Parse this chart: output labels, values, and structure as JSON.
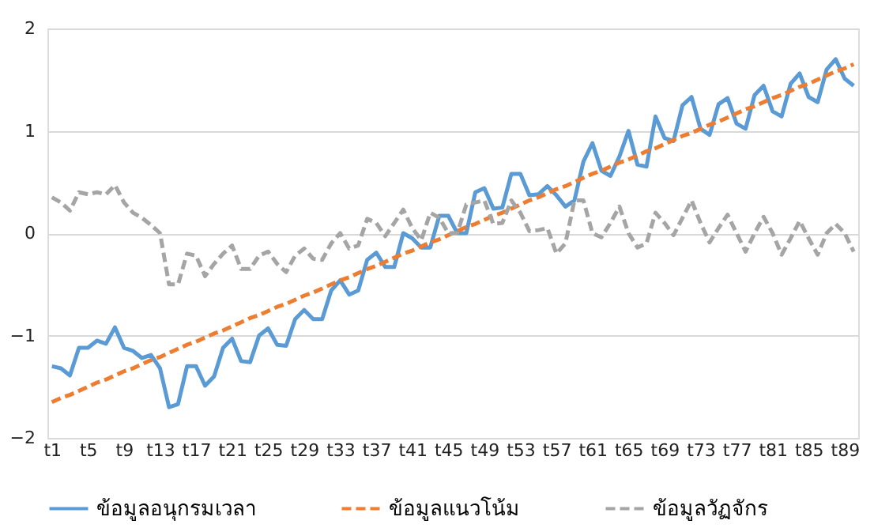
{
  "chart_data": {
    "type": "line",
    "categories": [
      "t1",
      null,
      null,
      null,
      "t5",
      null,
      null,
      null,
      "t9",
      null,
      null,
      null,
      "t13",
      null,
      null,
      null,
      "t17",
      null,
      null,
      null,
      "t21",
      null,
      null,
      null,
      "t25",
      null,
      null,
      null,
      "t29",
      null,
      null,
      null,
      "t33",
      null,
      null,
      null,
      "t37",
      null,
      null,
      null,
      "t41",
      null,
      null,
      null,
      "t45",
      null,
      null,
      null,
      "t49",
      null,
      null,
      null,
      "t53",
      null,
      null,
      null,
      "t57",
      null,
      null,
      null,
      "t61",
      null,
      null,
      null,
      "t65",
      null,
      null,
      null,
      "t69",
      null,
      null,
      null,
      "t73",
      null,
      null,
      null,
      "t77",
      null,
      null,
      null,
      "t81",
      null,
      null,
      null,
      "t85",
      null,
      null,
      null,
      "t89",
      null
    ],
    "series": [
      {
        "name": "ข้อมูลอนุกรมเวลา",
        "color": "#5b9bd5",
        "line_style": "solid",
        "values": [
          -1.3,
          -1.32,
          -1.39,
          -1.12,
          -1.12,
          -1.05,
          -1.08,
          -0.92,
          -1.12,
          -1.15,
          -1.22,
          -1.19,
          -1.32,
          -1.7,
          -1.67,
          -1.3,
          -1.3,
          -1.49,
          -1.4,
          -1.12,
          -1.03,
          -1.25,
          -1.26,
          -1.0,
          -0.93,
          -1.09,
          -1.1,
          -0.84,
          -0.75,
          -0.84,
          -0.84,
          -0.56,
          -0.46,
          -0.6,
          -0.56,
          -0.26,
          -0.19,
          -0.33,
          -0.33,
          0.0,
          -0.05,
          -0.14,
          -0.14,
          0.17,
          0.17,
          0.0,
          0.0,
          0.4,
          0.44,
          0.24,
          0.25,
          0.58,
          0.58,
          0.37,
          0.38,
          0.46,
          0.37,
          0.26,
          0.32,
          0.7,
          0.88,
          0.61,
          0.56,
          0.75,
          1.0,
          0.67,
          0.65,
          1.14,
          0.93,
          0.9,
          1.25,
          1.33,
          1.02,
          0.96,
          1.26,
          1.32,
          1.07,
          1.02,
          1.35,
          1.44,
          1.19,
          1.14,
          1.46,
          1.56,
          1.33,
          1.28,
          1.6,
          1.7,
          1.51,
          1.44
        ]
      },
      {
        "name": "ข้อมูลแนวโน้ม",
        "color": "#ed7d31",
        "line_style": "dashed",
        "values": [
          -1.65,
          -1.61,
          -1.58,
          -1.54,
          -1.5,
          -1.46,
          -1.43,
          -1.39,
          -1.35,
          -1.32,
          -1.28,
          -1.24,
          -1.21,
          -1.17,
          -1.13,
          -1.09,
          -1.06,
          -1.02,
          -0.98,
          -0.95,
          -0.91,
          -0.87,
          -0.83,
          -0.8,
          -0.76,
          -0.72,
          -0.69,
          -0.65,
          -0.61,
          -0.58,
          -0.54,
          -0.5,
          -0.46,
          -0.43,
          -0.39,
          -0.35,
          -0.32,
          -0.28,
          -0.24,
          -0.2,
          -0.17,
          -0.13,
          -0.09,
          -0.06,
          -0.02,
          0.02,
          0.06,
          0.09,
          0.13,
          0.17,
          0.2,
          0.24,
          0.28,
          0.32,
          0.35,
          0.39,
          0.43,
          0.46,
          0.5,
          0.54,
          0.58,
          0.61,
          0.65,
          0.69,
          0.72,
          0.76,
          0.8,
          0.83,
          0.87,
          0.91,
          0.95,
          0.98,
          1.02,
          1.06,
          1.09,
          1.13,
          1.17,
          1.21,
          1.24,
          1.28,
          1.32,
          1.35,
          1.39,
          1.43,
          1.46,
          1.5,
          1.54,
          1.58,
          1.61,
          1.65
        ]
      },
      {
        "name": "ข้อมูลวัฏจักร",
        "color": "#a5a5a5",
        "line_style": "dashed",
        "values": [
          0.35,
          0.3,
          0.22,
          0.4,
          0.38,
          0.4,
          0.38,
          0.47,
          0.3,
          0.2,
          0.15,
          0.08,
          0.0,
          -0.5,
          -0.5,
          -0.2,
          -0.22,
          -0.42,
          -0.3,
          -0.2,
          -0.12,
          -0.35,
          -0.35,
          -0.22,
          -0.18,
          -0.3,
          -0.38,
          -0.22,
          -0.15,
          -0.25,
          -0.26,
          -0.1,
          0.0,
          -0.15,
          -0.12,
          0.14,
          0.1,
          -0.03,
          0.1,
          0.23,
          0.05,
          -0.07,
          0.2,
          0.15,
          0.0,
          0.0,
          0.28,
          0.3,
          0.32,
          0.09,
          0.1,
          0.32,
          0.2,
          0.02,
          0.03,
          0.05,
          -0.2,
          -0.1,
          0.32,
          0.32,
          0.0,
          -0.04,
          0.1,
          0.26,
          0.0,
          -0.14,
          -0.1,
          0.2,
          0.1,
          -0.02,
          0.15,
          0.32,
          0.1,
          -0.09,
          0.05,
          0.18,
          0.0,
          -0.18,
          0.0,
          0.16,
          0.0,
          -0.21,
          -0.05,
          0.12,
          -0.05,
          -0.21,
          0.0,
          0.09,
          0.0,
          -0.18
        ]
      }
    ],
    "ylim": [
      -2,
      2
    ],
    "yticks": [
      -2,
      -1,
      0,
      1,
      2
    ],
    "grid": "y",
    "legend": "bottom"
  }
}
